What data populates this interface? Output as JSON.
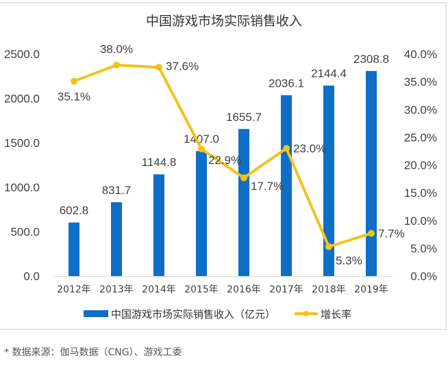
{
  "chart_data": {
    "type": "bar+line",
    "title": "中国游戏市场实际销售收入",
    "categories": [
      "2012年",
      "2013年",
      "2014年",
      "2015年",
      "2016年",
      "2017年",
      "2018年",
      "2019年"
    ],
    "series": [
      {
        "name": "中国游戏市场实际销售收入（亿元）",
        "type": "bar",
        "axis": "left",
        "color": "#0f6fc6",
        "values": [
          602.8,
          831.7,
          1144.8,
          1407.0,
          1655.7,
          2036.1,
          2144.4,
          2308.8
        ],
        "labels": [
          "602.8",
          "831.7",
          "1144.8",
          "1407.0",
          "1655.7",
          "2036.1",
          "2144.4",
          "2308.8"
        ]
      },
      {
        "name": "增长率",
        "type": "line",
        "axis": "right",
        "color": "#f2c318",
        "values": [
          35.1,
          38.0,
          37.6,
          22.9,
          17.7,
          23.0,
          5.3,
          7.7
        ],
        "labels": [
          "35.1%",
          "38.0%",
          "37.6%",
          "22.9%",
          "17.7%",
          "23.0%",
          "5.3%",
          "7.7%"
        ]
      }
    ],
    "y_left": {
      "ylim": [
        0,
        2500
      ],
      "ticks": [
        "0.0",
        "500.0",
        "1000.0",
        "1500.0",
        "2000.0",
        "2500.0"
      ]
    },
    "y_right": {
      "ylim": [
        0,
        40
      ],
      "ticks": [
        "0.0%",
        "5.0%",
        "10.0%",
        "15.0%",
        "20.0%",
        "25.0%",
        "30.0%",
        "35.0%",
        "40.0%"
      ]
    },
    "xlabel": "",
    "ylabel": "",
    "grid": false,
    "legend_position": "bottom"
  },
  "source_note": "* 数据来源：伽马数据（CNG）、游戏工委"
}
